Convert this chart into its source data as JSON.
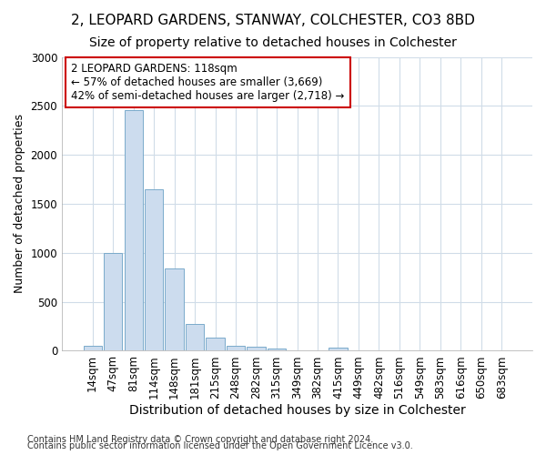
{
  "title1": "2, LEOPARD GARDENS, STANWAY, COLCHESTER, CO3 8BD",
  "title2": "Size of property relative to detached houses in Colchester",
  "xlabel": "Distribution of detached houses by size in Colchester",
  "ylabel": "Number of detached properties",
  "footnote1": "Contains HM Land Registry data © Crown copyright and database right 2024.",
  "footnote2": "Contains public sector information licensed under the Open Government Licence v3.0.",
  "bin_labels": [
    "14sqm",
    "47sqm",
    "81sqm",
    "114sqm",
    "148sqm",
    "181sqm",
    "215sqm",
    "248sqm",
    "282sqm",
    "315sqm",
    "349sqm",
    "382sqm",
    "415sqm",
    "449sqm",
    "482sqm",
    "516sqm",
    "549sqm",
    "583sqm",
    "616sqm",
    "650sqm",
    "683sqm"
  ],
  "bar_values": [
    50,
    1000,
    2460,
    1650,
    840,
    270,
    130,
    50,
    40,
    25,
    0,
    0,
    30,
    0,
    0,
    0,
    0,
    0,
    0,
    0,
    0
  ],
  "bar_color": "#ccdcee",
  "bar_edge_color": "#7aaacb",
  "annotation_line1": "2 LEOPARD GARDENS: 118sqm",
  "annotation_line2": "← 57% of detached houses are smaller (3,669)",
  "annotation_line3": "42% of semi-detached houses are larger (2,718) →",
  "annotation_box_color": "#ffffff",
  "annotation_border_color": "#cc0000",
  "ylim": [
    0,
    3000
  ],
  "yticks": [
    0,
    500,
    1000,
    1500,
    2000,
    2500,
    3000
  ],
  "bg_color": "#ffffff",
  "plot_bg_color": "#ffffff",
  "grid_color": "#d0dce8",
  "title1_fontsize": 11,
  "title2_fontsize": 10,
  "xlabel_fontsize": 10,
  "ylabel_fontsize": 9,
  "tick_fontsize": 8.5,
  "annotation_fontsize": 8.5,
  "footnote_fontsize": 7
}
